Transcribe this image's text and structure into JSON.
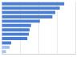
{
  "chart_data": {
    "type": "bar",
    "orientation": "horizontal",
    "categories": [
      null,
      null,
      null,
      null,
      null,
      null,
      null,
      null,
      null,
      null,
      null,
      null
    ],
    "values": [
      85,
      79,
      73,
      69,
      52,
      40,
      38,
      37,
      35,
      13,
      11,
      6
    ],
    "colors": [
      "#4a7fd4",
      "#4a7fd4",
      "#4a7fd4",
      "#4a7fd4",
      "#4a7fd4",
      "#4a7fd4",
      "#4a7fd4",
      "#4a7fd4",
      "#4a7fd4",
      "#4a7fd4",
      "#a8c3ec",
      "#a8c3ec"
    ],
    "xlim": [
      0,
      100
    ],
    "xticks": [
      0,
      25,
      50,
      75,
      100
    ],
    "grid": true,
    "tick_labels": false
  }
}
